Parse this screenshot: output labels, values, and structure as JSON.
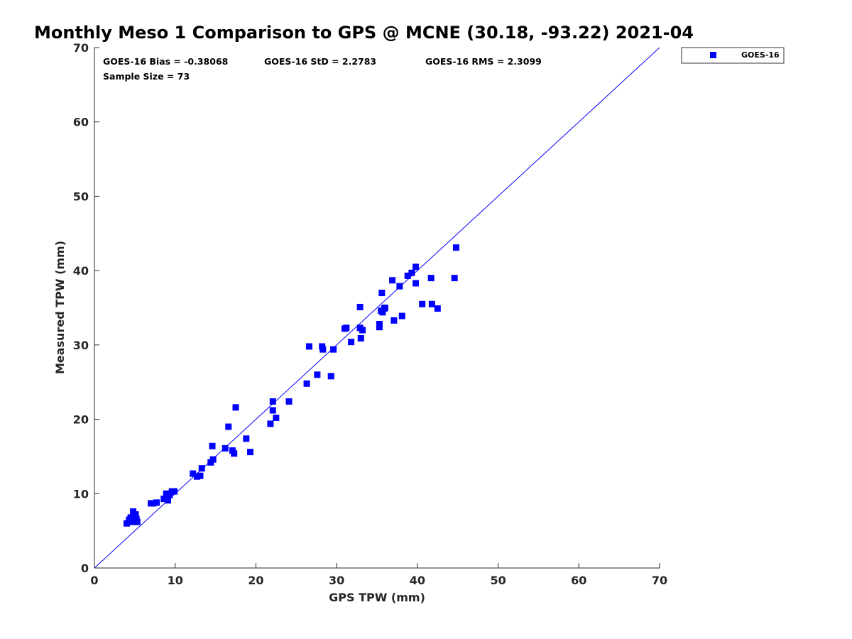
{
  "chart_data": {
    "type": "scatter",
    "title": "Monthly Meso 1 Comparison to GPS @ MCNE (30.18, -93.22) 2021-04",
    "xlabel": "GPS TPW (mm)",
    "ylabel": "Measured TPW (mm)",
    "xlim": [
      0,
      70
    ],
    "ylim": [
      0,
      70
    ],
    "xticks": [
      "0",
      "10",
      "20",
      "30",
      "40",
      "50",
      "60",
      "70"
    ],
    "yticks": [
      "0",
      "10",
      "20",
      "30",
      "40",
      "50",
      "60",
      "70"
    ],
    "grid": false,
    "legend_position": "top-right outside",
    "stats": {
      "bias": "GOES-16 Bias = -0.38068",
      "std": "GOES-16 StD = 2.2783",
      "rms": "GOES-16 RMS = 2.3099",
      "sample": "Sample Size = 73"
    },
    "reference_line": {
      "type": "one-to-one",
      "from": [
        0,
        0
      ],
      "to": [
        70,
        70
      ],
      "color": "#0000ff"
    },
    "series": [
      {
        "name": "GOES-16",
        "color": "#0000ff",
        "marker": "square",
        "points": [
          [
            4.0,
            6.0
          ],
          [
            4.3,
            6.5
          ],
          [
            4.6,
            6.2
          ],
          [
            4.8,
            7.6
          ],
          [
            5.0,
            7.0
          ],
          [
            5.2,
            6.6
          ],
          [
            5.3,
            6.2
          ],
          [
            7.0,
            8.7
          ],
          [
            7.3,
            8.7
          ],
          [
            7.7,
            8.8
          ],
          [
            8.6,
            9.3
          ],
          [
            8.9,
            10.0
          ],
          [
            9.1,
            9.1
          ],
          [
            9.3,
            9.8
          ],
          [
            9.6,
            10.3
          ],
          [
            9.9,
            10.3
          ],
          [
            12.2,
            12.7
          ],
          [
            12.7,
            12.3
          ],
          [
            13.1,
            12.4
          ],
          [
            13.3,
            13.4
          ],
          [
            14.4,
            14.2
          ],
          [
            14.7,
            14.6
          ],
          [
            14.6,
            16.4
          ],
          [
            16.2,
            16.1
          ],
          [
            16.6,
            19.0
          ],
          [
            17.1,
            15.8
          ],
          [
            17.3,
            15.4
          ],
          [
            17.5,
            21.6
          ],
          [
            18.8,
            17.4
          ],
          [
            19.3,
            15.6
          ],
          [
            21.8,
            19.4
          ],
          [
            22.1,
            21.2
          ],
          [
            22.1,
            22.4
          ],
          [
            22.5,
            20.2
          ],
          [
            24.1,
            22.4
          ],
          [
            26.3,
            24.8
          ],
          [
            26.6,
            29.8
          ],
          [
            27.6,
            26.0
          ],
          [
            28.2,
            29.8
          ],
          [
            28.3,
            29.4
          ],
          [
            29.3,
            25.8
          ],
          [
            29.6,
            29.4
          ],
          [
            31.0,
            32.2
          ],
          [
            31.2,
            32.3
          ],
          [
            31.8,
            30.4
          ],
          [
            32.9,
            32.3
          ],
          [
            32.9,
            35.1
          ],
          [
            33.0,
            30.9
          ],
          [
            33.2,
            32.0
          ],
          [
            35.3,
            32.4
          ],
          [
            35.3,
            32.8
          ],
          [
            35.5,
            34.6
          ],
          [
            35.6,
            37.0
          ],
          [
            35.7,
            34.4
          ],
          [
            35.9,
            34.9
          ],
          [
            36.9,
            38.7
          ],
          [
            37.1,
            33.3
          ],
          [
            37.8,
            37.9
          ],
          [
            38.1,
            33.9
          ],
          [
            38.8,
            39.3
          ],
          [
            39.3,
            39.7
          ],
          [
            39.8,
            40.5
          ],
          [
            39.8,
            38.3
          ],
          [
            40.6,
            35.5
          ],
          [
            41.7,
            39.0
          ],
          [
            41.8,
            35.5
          ],
          [
            42.5,
            34.9
          ],
          [
            44.6,
            39.0
          ],
          [
            44.8,
            43.1
          ],
          [
            4.5,
            6.8
          ],
          [
            5.1,
            7.2
          ],
          [
            9.0,
            9.4
          ],
          [
            36.0,
            35.0
          ]
        ]
      }
    ]
  }
}
